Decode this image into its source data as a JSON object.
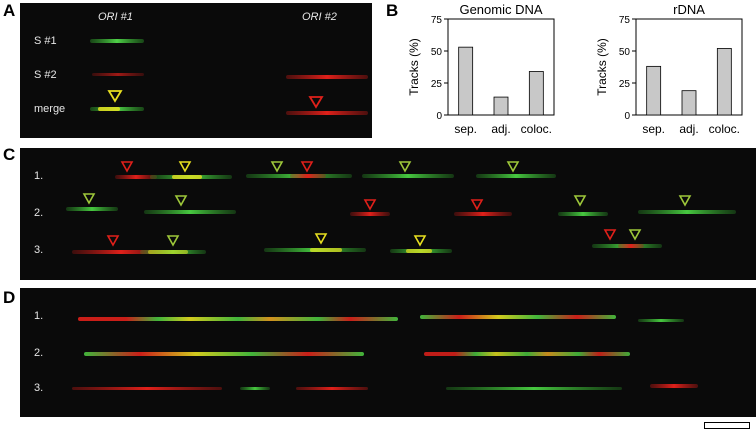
{
  "panels": {
    "A": {
      "letter": "A",
      "ori1": "ORI #1",
      "ori2": "ORI #2",
      "row_labels": [
        "S #1",
        "S #2",
        "merge"
      ]
    },
    "B": {
      "letter": "B"
    },
    "C": {
      "letter": "C",
      "row_labels": [
        "1.",
        "2.",
        "3."
      ]
    },
    "D": {
      "letter": "D",
      "row_labels": [
        "1.",
        "2.",
        "3."
      ]
    }
  },
  "colors": {
    "red": "#e0201a",
    "green": "#3fc23a",
    "yellow": "#e8e020",
    "bar": "#c8c8c8"
  },
  "chart_data": [
    {
      "type": "bar",
      "title": "Genomic DNA",
      "categories": [
        "sep.",
        "adj.",
        "coloc."
      ],
      "values": [
        53,
        14,
        34
      ],
      "ylabel": "Tracks (%)",
      "ylim": [
        0,
        75
      ],
      "yticks": [
        0,
        25,
        50,
        75
      ]
    },
    {
      "type": "bar",
      "title": "rDNA",
      "categories": [
        "sep.",
        "adj.",
        "coloc."
      ],
      "values": [
        38,
        19,
        52
      ],
      "ylabel": "Tracks (%)",
      "ylim": [
        0,
        75
      ],
      "yticks": [
        0,
        25,
        50,
        75
      ]
    }
  ]
}
